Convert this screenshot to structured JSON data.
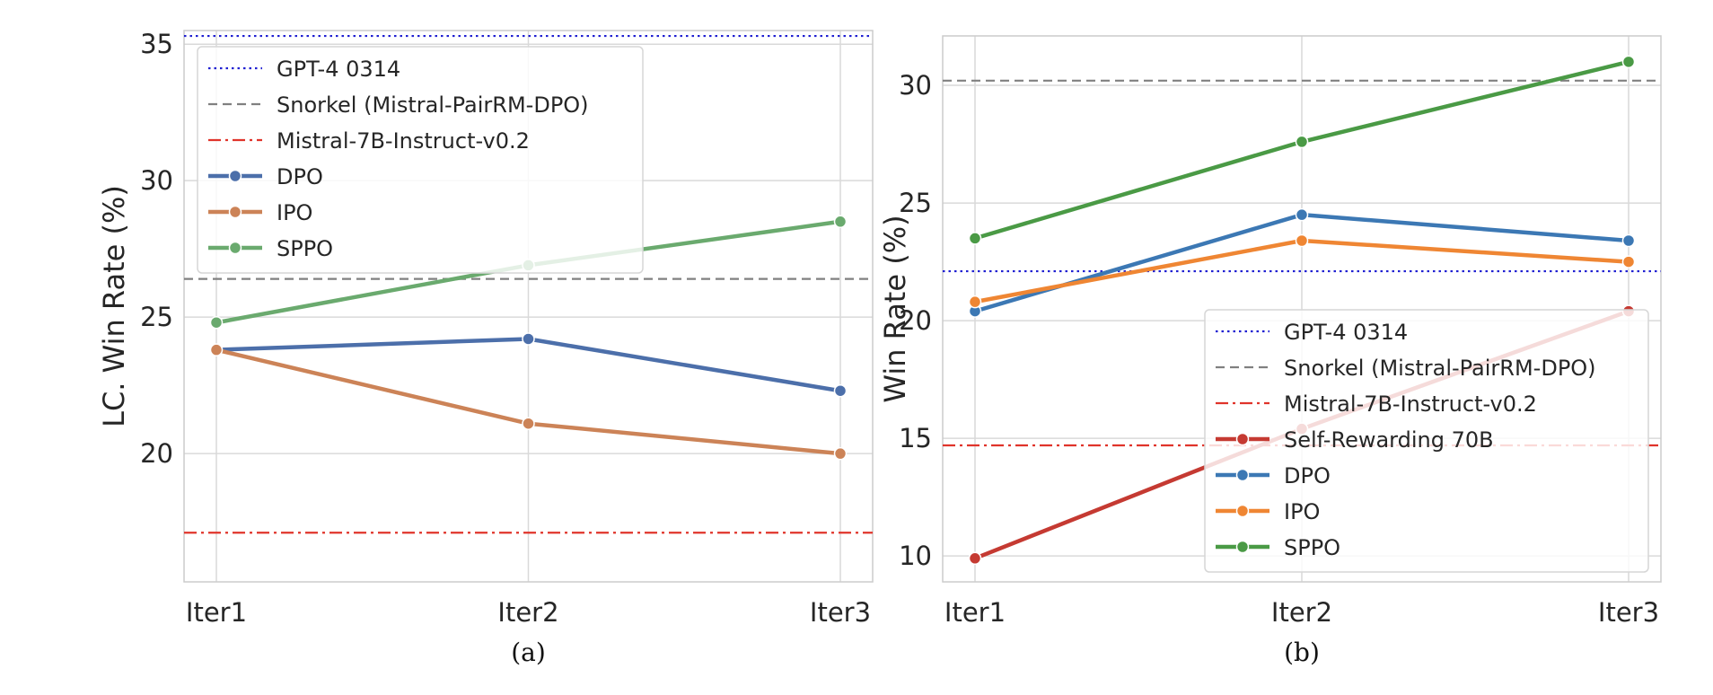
{
  "chart_data": [
    {
      "type": "line",
      "caption": "(a)",
      "ylabel": "LC. Win Rate (%)",
      "xlabel": "",
      "categories": [
        "Iter1",
        "Iter2",
        "Iter3"
      ],
      "ylim": [
        15.3,
        35.5
      ],
      "yticks": [
        20,
        25,
        30,
        35
      ],
      "grid": true,
      "legend_placement": "top-left",
      "reference_lines": [
        {
          "name": "GPT-4 0314",
          "value": 35.3,
          "color": "#1f1fd1",
          "style": "dotted"
        },
        {
          "name": "Snorkel (Mistral-PairRM-DPO)",
          "value": 26.4,
          "color": "#808080",
          "style": "dashed"
        },
        {
          "name": "Mistral-7B-Instruct-v0.2",
          "value": 17.1,
          "color": "#e0342b",
          "style": "dashdot"
        }
      ],
      "series": [
        {
          "name": "DPO",
          "values": [
            23.8,
            24.2,
            22.3
          ],
          "color": "#4c6faa"
        },
        {
          "name": "IPO",
          "values": [
            23.8,
            21.1,
            20.0
          ],
          "color": "#cc8357"
        },
        {
          "name": "SPPO",
          "values": [
            24.8,
            26.9,
            28.5
          ],
          "color": "#6aaa6e"
        }
      ]
    },
    {
      "type": "line",
      "caption": "(b)",
      "ylabel": "Win Rate (%)",
      "xlabel": "",
      "categories": [
        "Iter1",
        "Iter2",
        "Iter3"
      ],
      "ylim": [
        8.9,
        32.1
      ],
      "yticks": [
        10,
        15,
        20,
        25,
        30
      ],
      "grid": true,
      "legend_placement": "lower-right",
      "reference_lines": [
        {
          "name": "GPT-4 0314",
          "value": 22.1,
          "color": "#1f1fd1",
          "style": "dotted"
        },
        {
          "name": "Snorkel (Mistral-PairRM-DPO)",
          "value": 30.2,
          "color": "#808080",
          "style": "dashed"
        },
        {
          "name": "Mistral-7B-Instruct-v0.2",
          "value": 14.7,
          "color": "#e0342b",
          "style": "dashdot"
        }
      ],
      "series": [
        {
          "name": "Self-Rewarding 70B",
          "values": [
            9.9,
            15.4,
            20.4
          ],
          "color": "#c53a32"
        },
        {
          "name": "DPO",
          "values": [
            20.4,
            24.5,
            23.4
          ],
          "color": "#3c78b4"
        },
        {
          "name": "IPO",
          "values": [
            20.8,
            23.4,
            22.5
          ],
          "color": "#ef8633"
        },
        {
          "name": "SPPO",
          "values": [
            23.5,
            27.6,
            31.0
          ],
          "color": "#4a9a45"
        }
      ]
    }
  ]
}
